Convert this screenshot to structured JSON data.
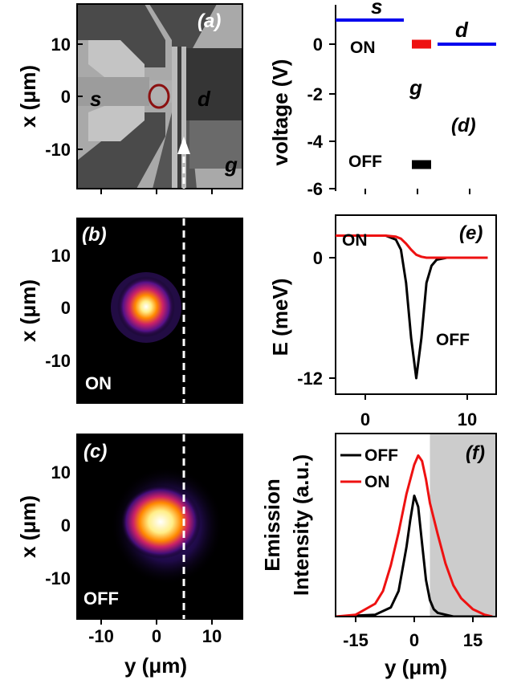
{
  "figure": {
    "panels": {
      "a": {
        "label": "(a)",
        "terminals": {
          "s": "s",
          "d": "d",
          "g": "g"
        },
        "ylabel": "x (μm)",
        "yticks": [
          "10",
          "0",
          "-10"
        ]
      },
      "b": {
        "label": "(b)",
        "state": "ON",
        "ylabel": "x (μm)",
        "yticks": [
          "10",
          "0",
          "-10"
        ]
      },
      "c": {
        "label": "(c)",
        "state": "OFF",
        "ylabel": "x (μm)",
        "yticks": [
          "10",
          "0",
          "-10"
        ],
        "xlabel": "y (μm)",
        "xticks": [
          "-10",
          "0",
          "10"
        ]
      },
      "d": {
        "label": "(d)",
        "ylabel": "voltage (V)",
        "yticks": [
          "0",
          "-2",
          "-4",
          "-6"
        ],
        "annotations": {
          "s": "s",
          "d": "d",
          "g": "g",
          "on": "ON",
          "off": "OFF"
        }
      },
      "e": {
        "label": "(e)",
        "ylabel": "E (meV)",
        "yticks": [
          "0",
          "-12"
        ],
        "xticks": [
          "0",
          "10"
        ],
        "annotations": {
          "on": "ON",
          "off": "OFF"
        }
      },
      "f": {
        "label": "(f)",
        "ylabel_line1": "Emission",
        "ylabel_line2": "Intensity (a.u.)",
        "xlabel": "y (μm)",
        "xticks": [
          "-15",
          "0",
          "15"
        ],
        "legend": [
          "OFF",
          "ON"
        ]
      }
    }
  },
  "colors": {
    "blue": "#0000ee",
    "red": "#ee1111",
    "black": "#000000",
    "shade": "#cccccc"
  },
  "chart_data": [
    {
      "type": "line",
      "panel": "d",
      "ylabel": "voltage (V)",
      "ylim": [
        -6,
        1.5
      ],
      "series": [
        {
          "name": "s",
          "x": [
            "s"
          ],
          "values": [
            1.0
          ],
          "color": "#0000ee"
        },
        {
          "name": "d",
          "x": [
            "d"
          ],
          "values": [
            0.0
          ],
          "color": "#0000ee"
        },
        {
          "name": "ON",
          "x": [
            "g"
          ],
          "values": [
            0.0
          ],
          "color": "#ee1111"
        },
        {
          "name": "OFF",
          "x": [
            "g"
          ],
          "values": [
            -5.0
          ],
          "color": "#000000"
        }
      ]
    },
    {
      "type": "line",
      "panel": "e",
      "ylabel": "E (meV)",
      "xlim": [
        -4,
        12
      ],
      "ylim": [
        -13,
        2.8
      ],
      "series": [
        {
          "name": "ON",
          "color": "#ee1111",
          "x": [
            -4,
            2,
            3,
            3.5,
            4,
            4.5,
            5,
            5.5,
            6,
            7,
            8,
            12
          ],
          "values": [
            2.2,
            2.2,
            2.1,
            1.9,
            1.4,
            0.8,
            0.3,
            0.1,
            0.0,
            0.0,
            0.0,
            0.0
          ]
        },
        {
          "name": "OFF",
          "color": "#000000",
          "x": [
            -4,
            2,
            3,
            3.5,
            4,
            4.5,
            5,
            5.5,
            6,
            6.5,
            7,
            8,
            12
          ],
          "values": [
            2.2,
            2.2,
            1.8,
            0.8,
            -2.5,
            -8.0,
            -12.0,
            -8.0,
            -2.5,
            -0.8,
            -0.2,
            0.0,
            0.0
          ]
        }
      ]
    },
    {
      "type": "line",
      "panel": "f",
      "xlabel": "y (μm)",
      "ylabel": "Emission Intensity (a.u.)",
      "xlim": [
        -21,
        20
      ],
      "ylim": [
        0,
        1.0
      ],
      "shaded_x": [
        4,
        20
      ],
      "series": [
        {
          "name": "OFF",
          "color": "#000000",
          "x": [
            -20,
            -10,
            -6,
            -4,
            -2,
            -1,
            0,
            1,
            2,
            3,
            4,
            5,
            6,
            8,
            10,
            20
          ],
          "values": [
            0.0,
            0.01,
            0.05,
            0.14,
            0.38,
            0.53,
            0.66,
            0.6,
            0.4,
            0.2,
            0.09,
            0.04,
            0.02,
            0.01,
            0.0,
            0.0
          ]
        },
        {
          "name": "ON",
          "color": "#ee1111",
          "x": [
            -20,
            -15,
            -10,
            -8,
            -6,
            -4,
            -2,
            0,
            1,
            2,
            3,
            4,
            6,
            8,
            10,
            12,
            15,
            18,
            20
          ],
          "values": [
            0.0,
            0.01,
            0.07,
            0.14,
            0.28,
            0.46,
            0.67,
            0.83,
            0.88,
            0.85,
            0.75,
            0.62,
            0.45,
            0.29,
            0.17,
            0.1,
            0.04,
            0.01,
            0.0
          ]
        }
      ]
    }
  ]
}
